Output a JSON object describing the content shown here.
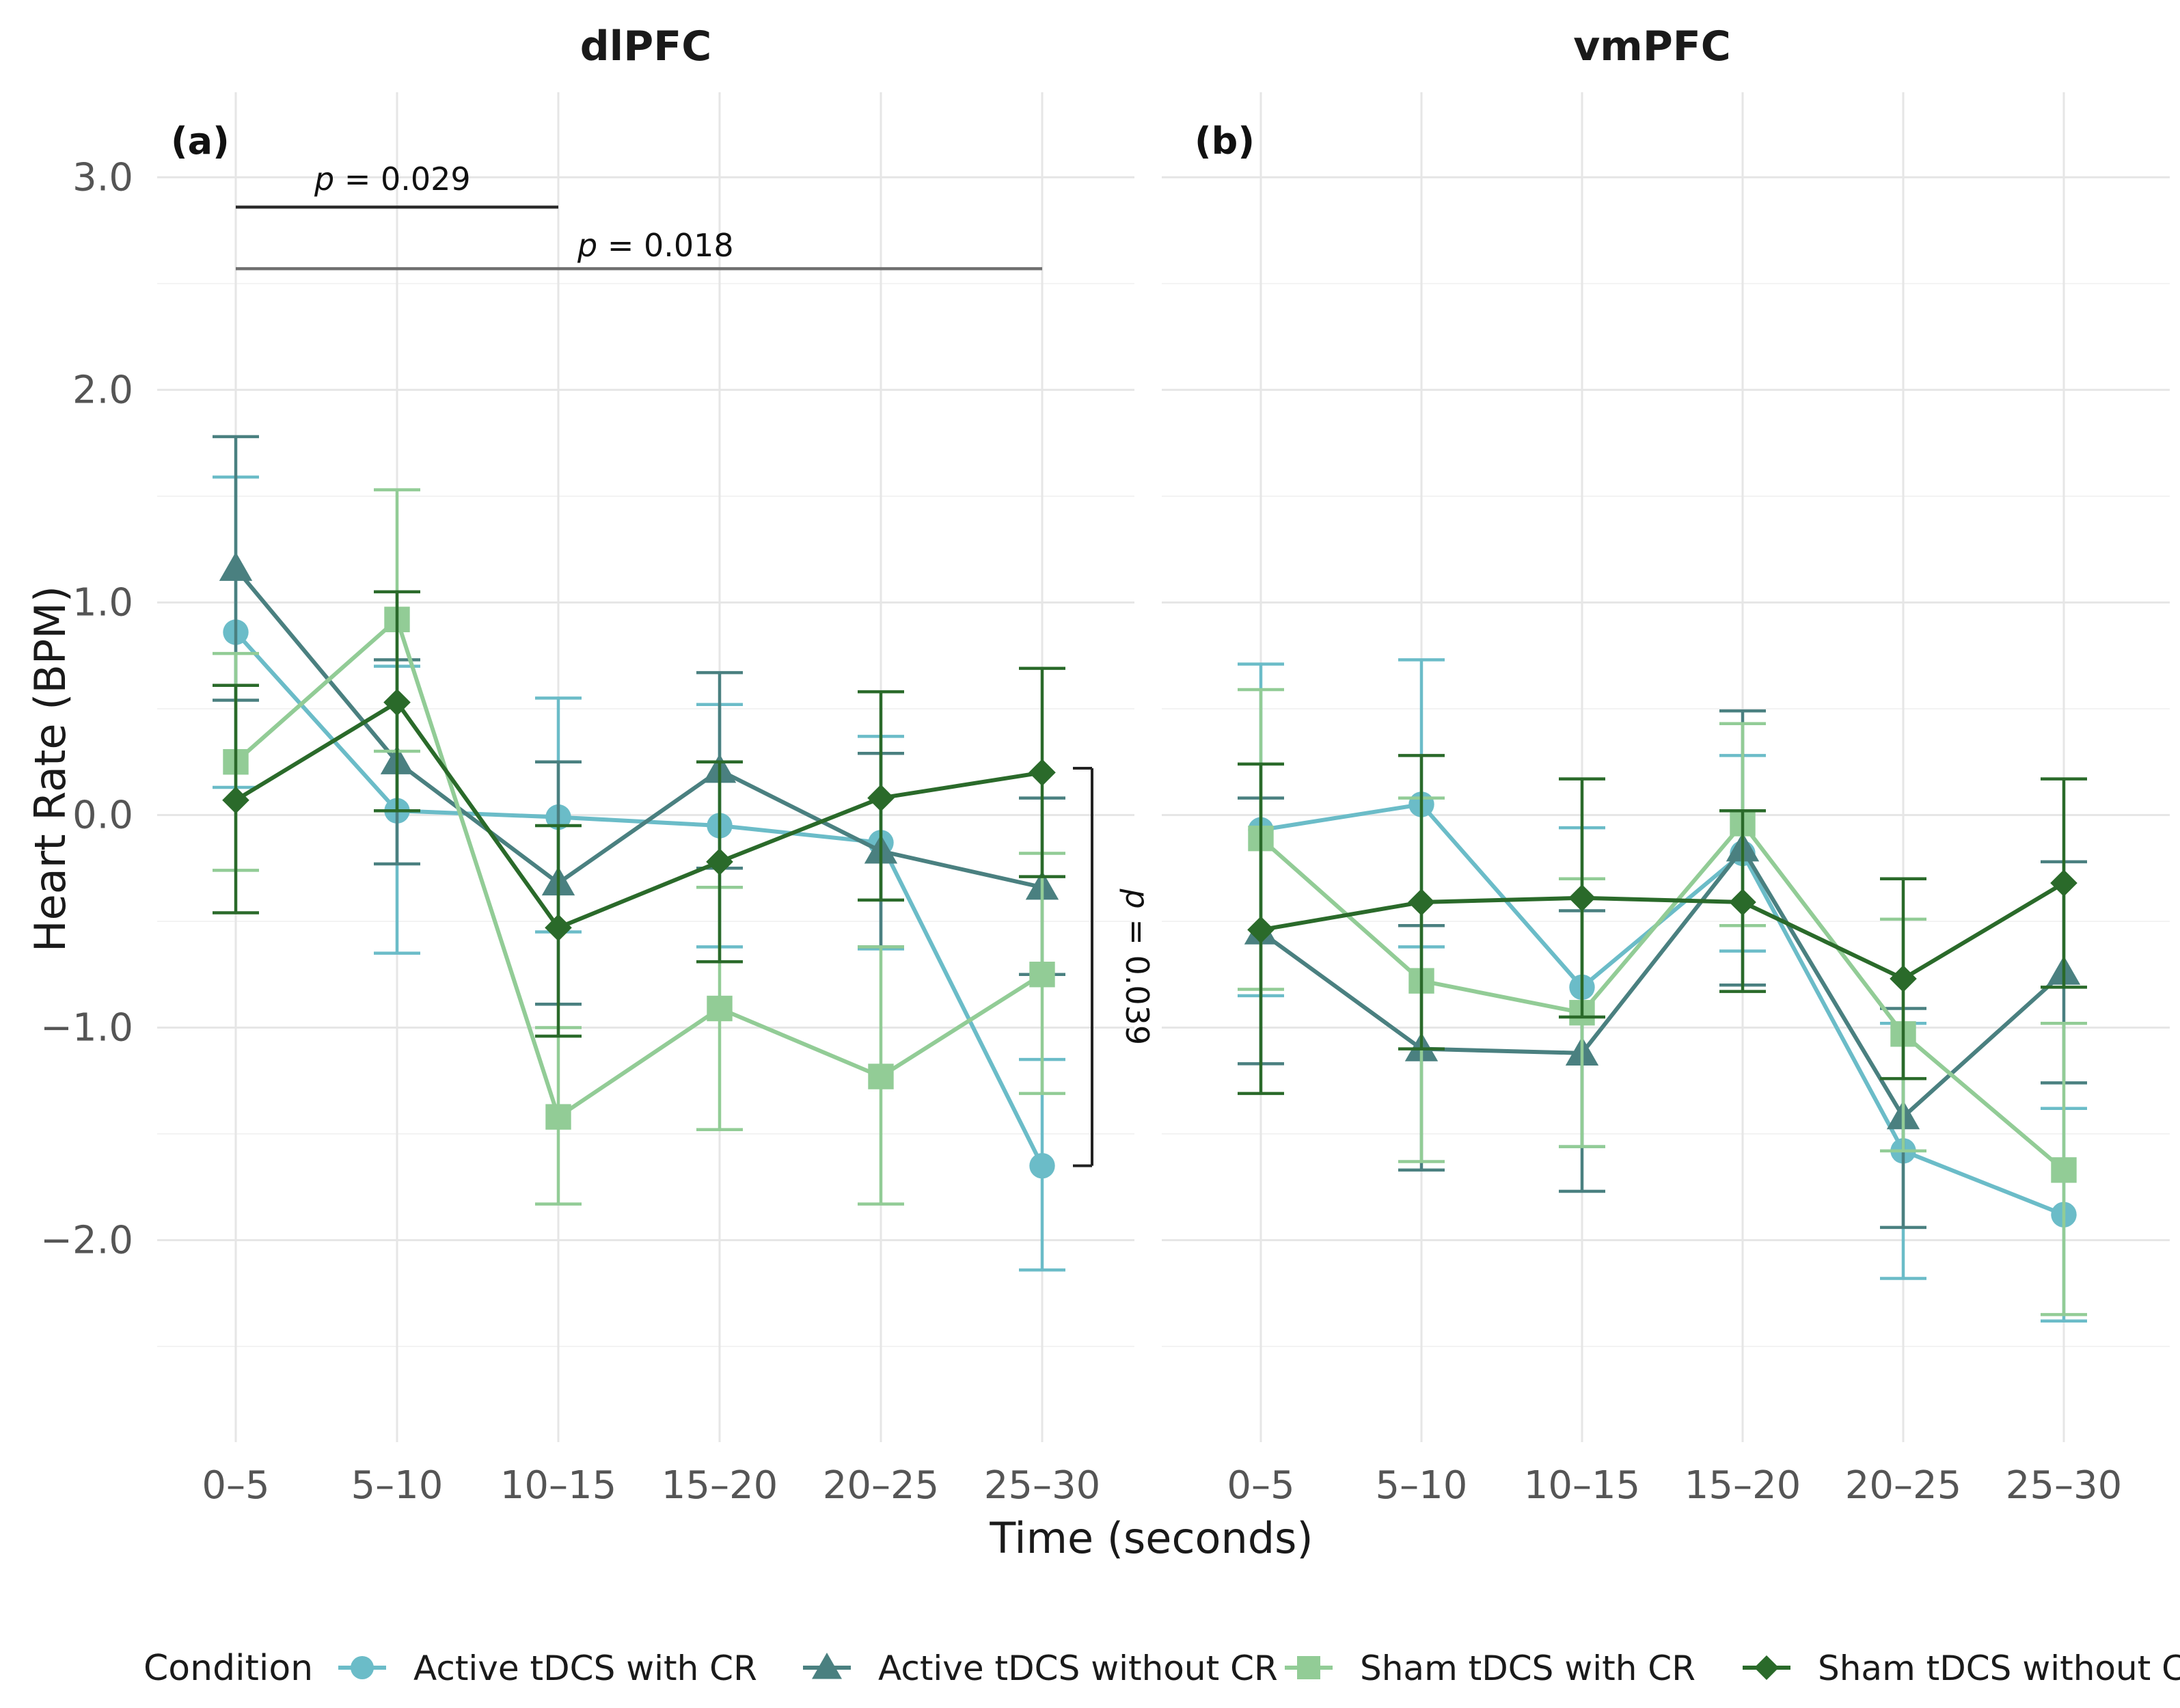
{
  "chart_data": {
    "type": "line",
    "xlabel": "Time (seconds)",
    "ylabel": "Heart Rate (BPM)",
    "ylim": [
      -2.95,
      3.4
    ],
    "yticks": [
      3.0,
      2.0,
      1.0,
      0.0,
      -1.0,
      -2.0
    ],
    "ytick_labels": [
      "3.0",
      "2.0",
      "1.0",
      "0.0",
      "−1.0",
      "−2.0"
    ],
    "categories": [
      "0–5",
      "5–10",
      "10–15",
      "15–20",
      "20–25",
      "25–30"
    ],
    "legend_title": "Condition",
    "legend_position": "bottom",
    "series_styles": [
      {
        "name": "Active tDCS with CR",
        "color": "#6bbcc8",
        "marker": "circle"
      },
      {
        "name": "Active tDCS without CR",
        "color": "#4a8080",
        "marker": "triangle"
      },
      {
        "name": "Sham tDCS with CR",
        "color": "#92cc96",
        "marker": "square"
      },
      {
        "name": "Sham tDCS without CR",
        "color": "#2a6a2a",
        "marker": "diamond"
      }
    ],
    "panels": [
      {
        "title": "dlPFC",
        "tag": "(a)",
        "series": [
          {
            "name": "Active tDCS with CR",
            "values": [
              0.86,
              0.02,
              -0.01,
              -0.05,
              -0.13,
              -1.65
            ],
            "lower": [
              0.13,
              -0.65,
              -0.55,
              -0.62,
              -0.63,
              -2.14
            ],
            "upper": [
              1.59,
              0.7,
              0.55,
              0.52,
              0.37,
              -1.15
            ]
          },
          {
            "name": "Active tDCS without CR",
            "values": [
              1.16,
              0.25,
              -0.32,
              0.21,
              -0.17,
              -0.34
            ],
            "lower": [
              0.54,
              -0.23,
              -0.89,
              -0.25,
              -0.62,
              -0.75
            ],
            "upper": [
              1.78,
              0.73,
              0.25,
              0.67,
              0.29,
              0.08
            ]
          },
          {
            "name": "Sham tDCS with CR",
            "values": [
              0.25,
              0.92,
              -1.42,
              -0.91,
              -1.23,
              -0.75
            ],
            "lower": [
              -0.26,
              0.3,
              -1.83,
              -1.48,
              -1.83,
              -1.31
            ],
            "upper": [
              0.76,
              1.53,
              -1.0,
              -0.34,
              -0.62,
              -0.18
            ]
          },
          {
            "name": "Sham tDCS without CR",
            "values": [
              0.07,
              0.53,
              -0.53,
              -0.22,
              0.08,
              0.2
            ],
            "lower": [
              -0.46,
              0.02,
              -1.04,
              -0.69,
              -0.4,
              -0.29
            ],
            "upper": [
              0.61,
              1.05,
              -0.05,
              0.25,
              0.58,
              0.69
            ]
          }
        ],
        "annotations": [
          {
            "label": "p = 0.029",
            "p_symbol": "p",
            "p_value": " = 0.029",
            "from": "0–5",
            "to": "10–15",
            "y": 2.86
          },
          {
            "label": "p = 0.018",
            "p_symbol": "p",
            "p_value": " = 0.018",
            "from": "0–5",
            "to": "25–30",
            "y": 2.57
          },
          {
            "label": "p = 0.039",
            "p_symbol": "p",
            "p_value": " = 0.039",
            "between_y": [
              0.22,
              -1.65
            ]
          }
        ]
      },
      {
        "title": "vmPFC",
        "tag": "(b)",
        "series": [
          {
            "name": "Active tDCS with CR",
            "values": [
              -0.07,
              0.05,
              -0.81,
              -0.18,
              -1.58,
              -1.88
            ],
            "lower": [
              -0.85,
              -0.62,
              -1.56,
              -0.64,
              -2.18,
              -2.38
            ],
            "upper": [
              0.71,
              0.73,
              -0.06,
              0.28,
              -0.98,
              -1.38
            ]
          },
          {
            "name": "Active tDCS without CR",
            "values": [
              -0.55,
              -1.1,
              -1.12,
              -0.16,
              -1.42,
              -0.74
            ],
            "lower": [
              -1.17,
              -1.67,
              -1.77,
              -0.8,
              -1.94,
              -1.26
            ],
            "upper": [
              0.08,
              -0.52,
              -0.45,
              0.49,
              -0.91,
              -0.22
            ]
          },
          {
            "name": "Sham tDCS with CR",
            "values": [
              -0.11,
              -0.78,
              -0.93,
              -0.04,
              -1.03,
              -1.67
            ],
            "lower": [
              -0.82,
              -1.63,
              -1.56,
              -0.52,
              -1.58,
              -2.35
            ],
            "upper": [
              0.59,
              0.08,
              -0.3,
              0.43,
              -0.49,
              -0.98
            ]
          },
          {
            "name": "Sham tDCS without CR",
            "values": [
              -0.54,
              -0.41,
              -0.39,
              -0.41,
              -0.77,
              -0.32
            ],
            "lower": [
              -1.31,
              -1.1,
              -0.95,
              -0.83,
              -1.24,
              -0.81
            ],
            "upper": [
              0.24,
              0.28,
              0.17,
              0.02,
              -0.3,
              0.17
            ]
          }
        ],
        "annotations": []
      }
    ]
  }
}
